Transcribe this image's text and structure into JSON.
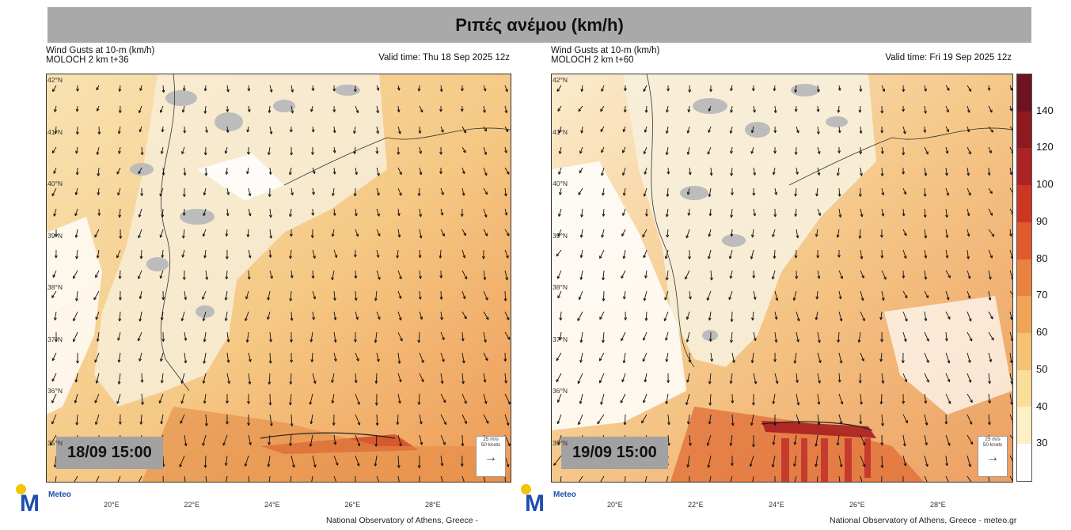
{
  "title": "Ριπές ανέμου (km/h)",
  "panels": [
    {
      "line1": "Wind Gusts at 10-m (km/h)",
      "line2": "MOLOCH 2 km t+36",
      "valid": "Valid time: Thu 18 Sep 2025 12z",
      "timestamp": "18/09 15:00",
      "credit": "National Observatory of Athens, Greece -",
      "legend_line1": "25 m/s",
      "legend_line2": "50 knots",
      "logo_word": "Meteo"
    },
    {
      "line1": "Wind Gusts at 10-m (km/h)",
      "line2": "MOLOCH 2 km t+60",
      "valid": "Valid time: Fri 19 Sep 2025 12z",
      "timestamp": "19/09 15:00",
      "credit": "National Observatory of Athens, Greece - meteo.gr",
      "legend_line1": "25 m/s",
      "legend_line2": "50 knots",
      "logo_word": "Meteo"
    }
  ],
  "lat_labels": [
    "42°N",
    "41°N",
    "40°N",
    "39°N",
    "38°N",
    "37°N",
    "36°N",
    "35°N"
  ],
  "lon_labels": [
    "20°E",
    "22°E",
    "24°E",
    "26°E",
    "28°E"
  ],
  "colorbar": {
    "labels": [
      "140",
      "120",
      "100",
      "90",
      "80",
      "70",
      "60",
      "50",
      "40",
      "30"
    ],
    "colors": [
      "#6e1420",
      "#8e1a1f",
      "#ad2222",
      "#cc3724",
      "#e05a2c",
      "#e9813f",
      "#f0a455",
      "#f5c274",
      "#f9dd99",
      "#fcf0c4",
      "#ffffff"
    ]
  },
  "colors": {
    "land": "#f6f0e0",
    "mountain": "#b9b9b9",
    "sea_white": "#ffffff"
  }
}
